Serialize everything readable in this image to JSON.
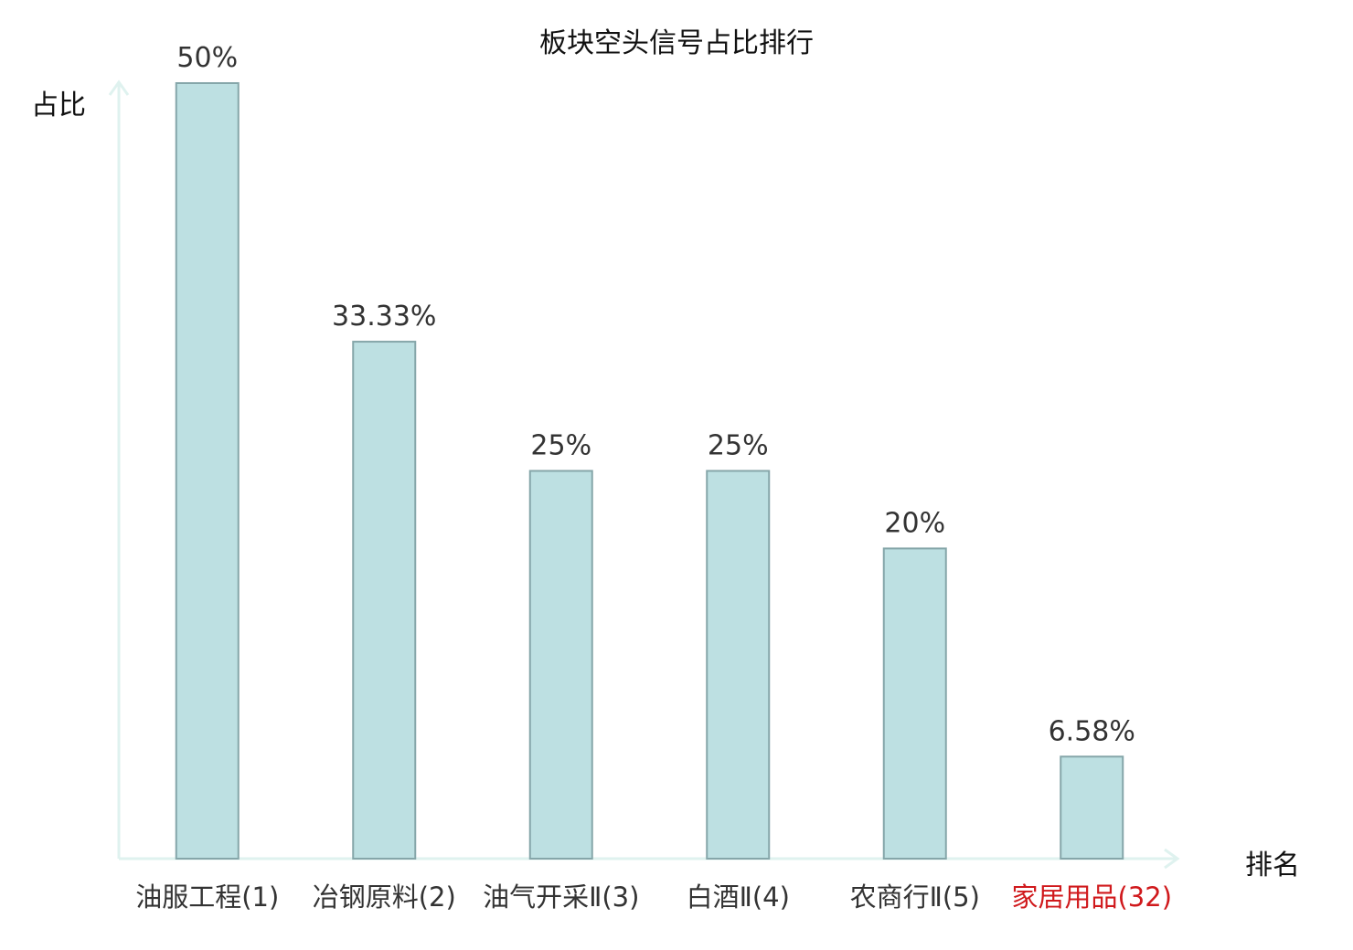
{
  "chart_data": {
    "type": "bar",
    "title": "板块空头信号占比排行",
    "ylabel": "占比",
    "xlabel": "排名",
    "categories": [
      "油服工程(1)",
      "冶钢原料(2)",
      "油气开采Ⅱ(3)",
      "白酒Ⅱ(4)",
      "农商行Ⅱ(5)",
      "家居用品(32)"
    ],
    "values": [
      50,
      33.33,
      25,
      25,
      20,
      6.58
    ],
    "value_labels": [
      "50%",
      "33.33%",
      "25%",
      "25%",
      "20%",
      "6.58%"
    ],
    "ylim": [
      0,
      50
    ],
    "grid": false,
    "legend": "none",
    "colors": {
      "bar_fill": "#bde0e2",
      "bar_stroke": "#85a6a9",
      "axis": "#dff2ef",
      "category_text": "#333333",
      "highlight_text": "#d0191c",
      "title_text": "#111111"
    },
    "highlight_index": 5
  }
}
